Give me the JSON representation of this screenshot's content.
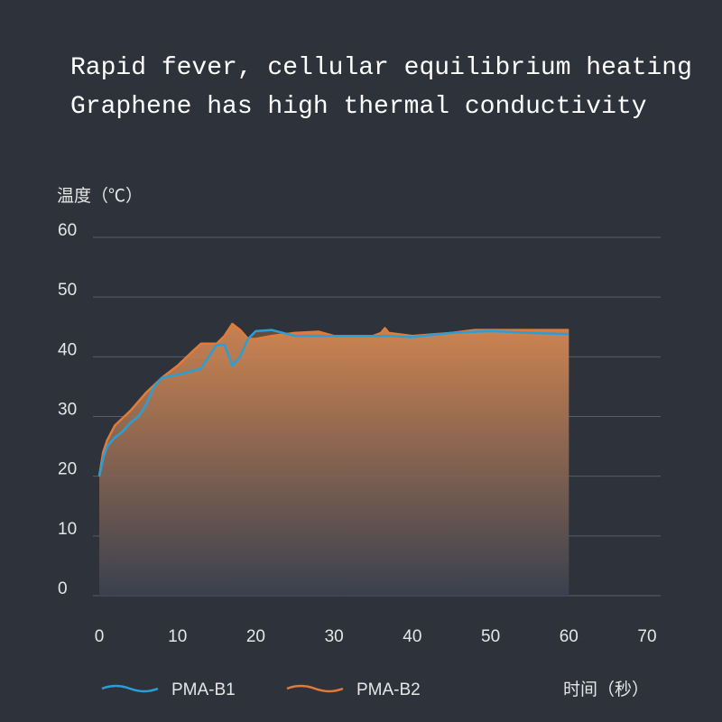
{
  "chart_data": {
    "type": "area-line",
    "title": "Rapid fever, cellular equilibrium heating",
    "subtitle": "Graphene has high thermal conductivity",
    "y_label": "温度（℃）",
    "x_label": "时间（秒）",
    "xlim": [
      0,
      70
    ],
    "ylim": [
      0,
      60
    ],
    "xticks": [
      0,
      10,
      20,
      30,
      40,
      50,
      60,
      70
    ],
    "yticks": [
      0,
      10,
      20,
      30,
      40,
      50,
      60
    ],
    "grid": true,
    "series": [
      {
        "name": "PMA-B2",
        "color": "#e07b3a",
        "x": [
          0,
          0.5,
          1,
          2,
          4,
          6,
          8,
          10,
          12,
          13,
          15,
          16,
          17,
          18,
          19,
          20,
          22,
          25,
          28,
          30,
          35,
          36,
          36.5,
          37,
          40,
          45,
          48,
          55,
          60
        ],
        "values": [
          20,
          24,
          26,
          28.5,
          31,
          34,
          36.5,
          38.5,
          41,
          42.2,
          42.2,
          43.5,
          45.5,
          44.5,
          43,
          43,
          43.5,
          44,
          44.2,
          43.5,
          43.5,
          44,
          44.8,
          44,
          43.5,
          44,
          44.5,
          44.5,
          44.5
        ]
      },
      {
        "name": "PMA-B1",
        "color": "#2a9fd6",
        "x": [
          0,
          0.5,
          1,
          2,
          3,
          4,
          5,
          6,
          7,
          8,
          10,
          13,
          15,
          16,
          17,
          18,
          19,
          20,
          22,
          25,
          30,
          35,
          37,
          40,
          45,
          50,
          55,
          60
        ],
        "values": [
          20,
          23,
          25,
          26.5,
          27.5,
          29,
          30,
          32,
          35,
          36.5,
          37,
          38,
          42,
          42,
          38.5,
          40,
          43,
          44.3,
          44.5,
          43.5,
          43.5,
          43.5,
          43.5,
          43.3,
          44,
          44.3,
          44,
          43.8
        ]
      }
    ]
  }
}
